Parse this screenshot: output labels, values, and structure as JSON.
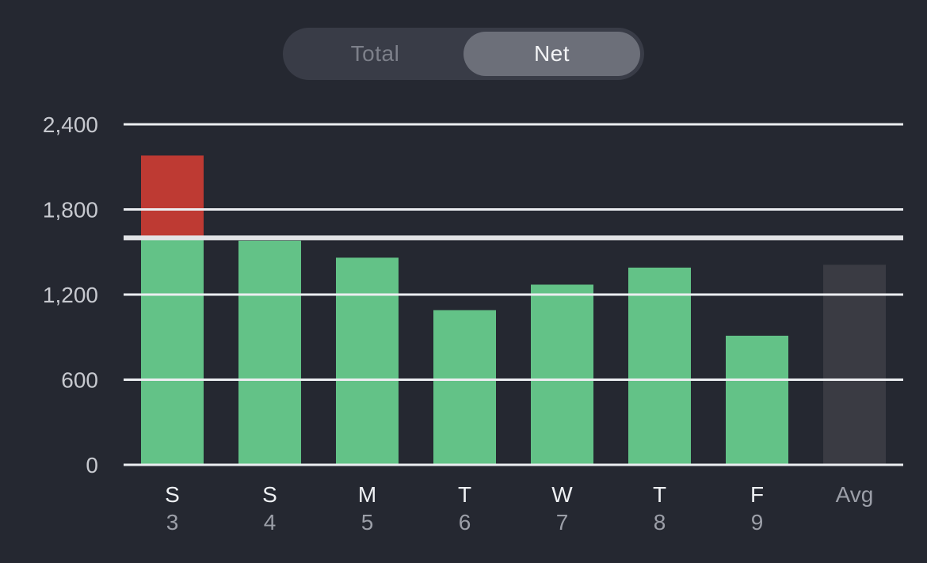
{
  "toggle": {
    "options": [
      "Total",
      "Net"
    ],
    "selected": "Net"
  },
  "chart_data": {
    "type": "bar",
    "categories": [
      {
        "day": "S",
        "date": "3"
      },
      {
        "day": "S",
        "date": "4"
      },
      {
        "day": "M",
        "date": "5"
      },
      {
        "day": "T",
        "date": "6"
      },
      {
        "day": "W",
        "date": "7"
      },
      {
        "day": "T",
        "date": "8"
      },
      {
        "day": "F",
        "date": "9"
      },
      {
        "day": "Avg",
        "date": ""
      }
    ],
    "values": [
      2180,
      1580,
      1460,
      1090,
      1270,
      1390,
      910,
      1410
    ],
    "goal": 1600,
    "ylim": [
      0,
      2400
    ],
    "yticks": [
      {
        "value": 0,
        "label": "0"
      },
      {
        "value": 600,
        "label": "600"
      },
      {
        "value": 1200,
        "label": "1,200"
      },
      {
        "value": 1800,
        "label": "1,800"
      },
      {
        "value": 2400,
        "label": "2,400"
      }
    ],
    "grid": true,
    "colors": {
      "under_goal": "#63c287",
      "over_goal": "#be3a33",
      "average": "#3a3b43",
      "grid": "#eceef1",
      "goal_line": "#e2e3e6"
    }
  }
}
